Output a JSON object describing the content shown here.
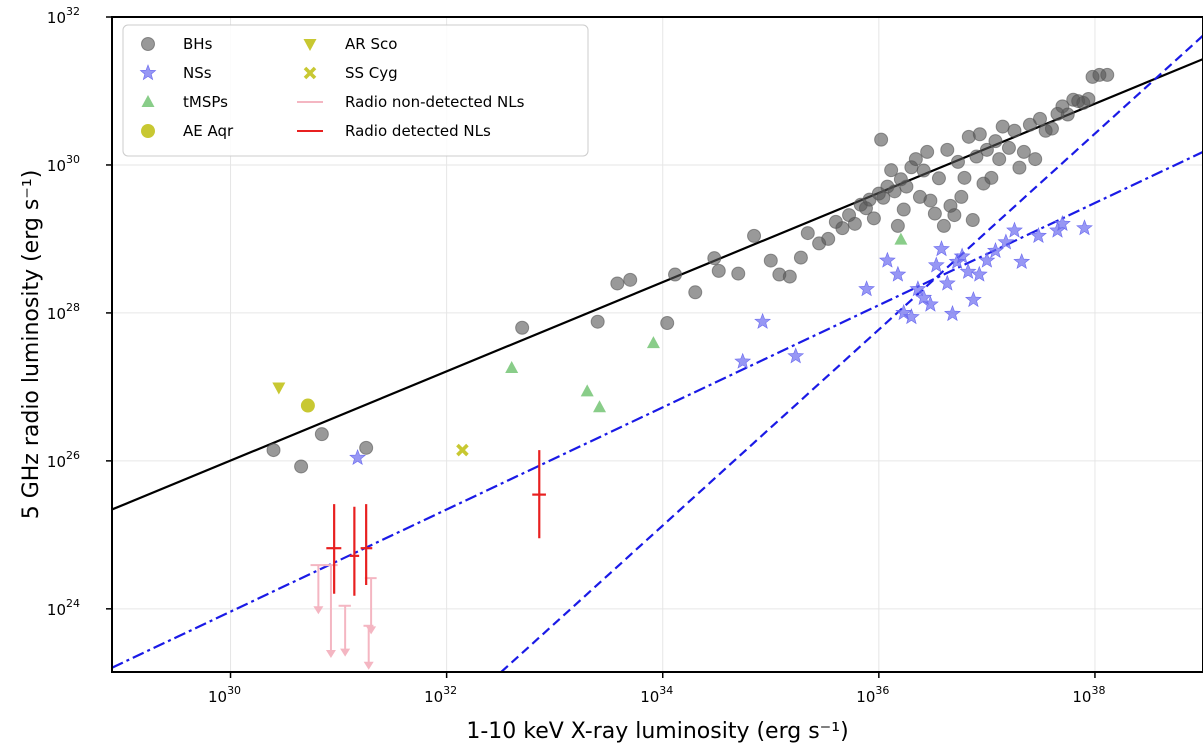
{
  "chart_data": {
    "type": "scatter",
    "xscale": "log",
    "yscale": "log",
    "xlim": [
      8e+28,
      1e+39
    ],
    "ylim": [
      1.4e+23,
      1e+32
    ],
    "grid": true,
    "legend_position": "top-left",
    "xlabel": "1-10 keV X-ray luminosity (erg s⁻¹)",
    "ylabel": "5 GHz radio luminosity (erg s⁻¹)",
    "x_ticks": [
      {
        "value": 1e+30,
        "base": "10",
        "exp": "30"
      },
      {
        "value": 1e+32,
        "base": "10",
        "exp": "32"
      },
      {
        "value": 1e+34,
        "base": "10",
        "exp": "34"
      },
      {
        "value": 1e+36,
        "base": "10",
        "exp": "36"
      },
      {
        "value": 1e+38,
        "base": "10",
        "exp": "38"
      }
    ],
    "y_ticks": [
      {
        "value": 1e+24,
        "base": "10",
        "exp": "24"
      },
      {
        "value": 1e+26,
        "base": "10",
        "exp": "26"
      },
      {
        "value": 1e+28,
        "base": "10",
        "exp": "28"
      },
      {
        "value": 1e+30,
        "base": "10",
        "exp": "30"
      },
      {
        "value": 1e+32,
        "base": "10",
        "exp": "32"
      }
    ],
    "legend": [
      {
        "label": "BHs",
        "marker": "circle",
        "color": "#555555"
      },
      {
        "label": "NSs",
        "marker": "star",
        "color": "#6b6bf0"
      },
      {
        "label": "tMSPs",
        "marker": "triangle-up",
        "color": "#6cc06c"
      },
      {
        "label": "AE Aqr",
        "marker": "circle",
        "color": "#c8c832"
      },
      {
        "label": "AR Sco",
        "marker": "triangle-down",
        "color": "#c8c832"
      },
      {
        "label": "SS Cyg",
        "marker": "x",
        "color": "#c8c832"
      },
      {
        "label": "Radio non-detected NLs",
        "marker": "line",
        "color": "#f4b6c2"
      },
      {
        "label": "Radio detected NLs",
        "marker": "line",
        "color": "#e82020"
      }
    ],
    "fit_lines": [
      {
        "style": "solid",
        "color": "#000000",
        "points": [
          [
            8e+28,
            2.2e+25
          ],
          [
            1e+39,
            2.7e+31
          ]
        ]
      },
      {
        "style": "dashdot",
        "color": "#1a1ae6",
        "points": [
          [
            8e+28,
            1.6e+23
          ],
          [
            1e+39,
            1.5e+30
          ]
        ]
      },
      {
        "style": "dashed",
        "color": "#1a1ae6",
        "points": [
          [
            3.2e+32,
            1.4e+23
          ],
          [
            1e+39,
            5.6e+31
          ]
        ]
      }
    ],
    "series": [
      {
        "name": "BHs",
        "marker": "circle",
        "color": "#555555",
        "points": [
          [
            2.5e+30,
            1.4e+26
          ],
          [
            4.5e+30,
            8.4e+25
          ],
          [
            7e+30,
            2.3e+26
          ],
          [
            1.8e+31,
            1.5e+26
          ],
          [
            5e+32,
            6.3e+27
          ],
          [
            2.5e+33,
            7.6e+27
          ],
          [
            3.8e+33,
            2.5e+28
          ],
          [
            5e+33,
            2.8e+28
          ],
          [
            1.1e+34,
            7.3e+27
          ],
          [
            1.3e+34,
            3.3e+28
          ],
          [
            2e+34,
            1.9e+28
          ],
          [
            3e+34,
            5.5e+28
          ],
          [
            3.3e+34,
            3.7e+28
          ],
          [
            5e+34,
            3.4e+28
          ],
          [
            7e+34,
            1.1e+29
          ],
          [
            1e+35,
            5.1e+28
          ],
          [
            1.2e+35,
            3.3e+28
          ],
          [
            1.5e+35,
            3.1e+28
          ],
          [
            1.9e+35,
            5.6e+28
          ],
          [
            2.2e+35,
            1.2e+29
          ],
          [
            2.8e+35,
            8.7e+28
          ],
          [
            3.4e+35,
            1e+29
          ],
          [
            4e+35,
            1.7e+29
          ],
          [
            4.6e+35,
            1.4e+29
          ],
          [
            5.3e+35,
            2.1e+29
          ],
          [
            6e+35,
            1.6e+29
          ],
          [
            6.8e+35,
            2.9e+29
          ],
          [
            7.6e+35,
            2.6e+29
          ],
          [
            8.2e+35,
            3.4e+29
          ],
          [
            9e+35,
            1.9e+29
          ],
          [
            1e+36,
            4.1e+29
          ],
          [
            1.05e+36,
            2.2e+30
          ],
          [
            1.1e+36,
            3.6e+29
          ],
          [
            1.2e+36,
            5.1e+29
          ],
          [
            1.3e+36,
            8.5e+29
          ],
          [
            1.4e+36,
            4.4e+29
          ],
          [
            1.5e+36,
            1.5e+29
          ],
          [
            1.6e+36,
            6.4e+29
          ],
          [
            1.7e+36,
            2.5e+29
          ],
          [
            1.8e+36,
            5.1e+29
          ],
          [
            2e+36,
            9.3e+29
          ],
          [
            2.2e+36,
            1.2e+30
          ],
          [
            2.4e+36,
            3.7e+29
          ],
          [
            2.6e+36,
            8.4e+29
          ],
          [
            2.8e+36,
            1.5e+30
          ],
          [
            3e+36,
            3.3e+29
          ],
          [
            3.3e+36,
            2.2e+29
          ],
          [
            3.6e+36,
            6.6e+29
          ],
          [
            4e+36,
            1.5e+29
          ],
          [
            4.3e+36,
            1.6e+30
          ],
          [
            4.6e+36,
            2.8e+29
          ],
          [
            5e+36,
            2.1e+29
          ],
          [
            5.4e+36,
            1.1e+30
          ],
          [
            5.8e+36,
            3.7e+29
          ],
          [
            6.2e+36,
            6.7e+29
          ],
          [
            6.8e+36,
            2.4e+30
          ],
          [
            7.4e+36,
            1.8e+29
          ],
          [
            8e+36,
            1.3e+30
          ],
          [
            8.6e+36,
            2.6e+30
          ],
          [
            9.3e+36,
            5.6e+29
          ],
          [
            1e+37,
            1.6e+30
          ],
          [
            1.1e+37,
            6.7e+29
          ],
          [
            1.2e+37,
            2.1e+30
          ],
          [
            1.3e+37,
            1.2e+30
          ],
          [
            1.4e+37,
            3.3e+30
          ],
          [
            1.6e+37,
            1.7e+30
          ],
          [
            1.8e+37,
            2.9e+30
          ],
          [
            2e+37,
            9.2e+29
          ],
          [
            2.2e+37,
            1.5e+30
          ],
          [
            2.5e+37,
            3.5e+30
          ],
          [
            2.8e+37,
            1.2e+30
          ],
          [
            3.1e+37,
            4.2e+30
          ],
          [
            3.5e+37,
            2.9e+30
          ],
          [
            4e+37,
            3.1e+30
          ],
          [
            4.5e+37,
            4.9e+30
          ],
          [
            5e+37,
            6.2e+30
          ],
          [
            5.6e+37,
            4.8e+30
          ],
          [
            6.3e+37,
            7.6e+30
          ],
          [
            7e+37,
            7.3e+30
          ],
          [
            7.8e+37,
            6.9e+30
          ],
          [
            8.7e+37,
            7.8e+30
          ],
          [
            9.5e+37,
            1.55e+31
          ],
          [
            1.1e+38,
            1.65e+31
          ],
          [
            1.3e+38,
            1.65e+31
          ]
        ]
      },
      {
        "name": "NSs",
        "marker": "star",
        "color": "#6b6bf0",
        "points": [
          [
            1.5e+31,
            1.1e+26
          ],
          [
            5.5e+34,
            2.2e+27
          ],
          [
            8.4e+34,
            7.6e+27
          ],
          [
            1.7e+35,
            2.6e+27
          ],
          [
            7.7e+35,
            2.1e+28
          ],
          [
            1.2e+36,
            5.1e+28
          ],
          [
            1.5e+36,
            3.3e+28
          ],
          [
            1.7e+36,
            1e+28
          ],
          [
            2e+36,
            8.8e+27
          ],
          [
            2.3e+36,
            2.1e+28
          ],
          [
            2.6e+36,
            1.6e+28
          ],
          [
            3e+36,
            1.3e+28
          ],
          [
            3.4e+36,
            4.4e+28
          ],
          [
            3.8e+36,
            7.3e+28
          ],
          [
            4.3e+36,
            2.5e+28
          ],
          [
            4.8e+36,
            9.7e+27
          ],
          [
            5.3e+36,
            4.9e+28
          ],
          [
            5.9e+36,
            5.8e+28
          ],
          [
            6.7e+36,
            3.6e+28
          ],
          [
            7.5e+36,
            1.5e+28
          ],
          [
            8.5e+36,
            3.3e+28
          ],
          [
            1e+37,
            5.1e+28
          ],
          [
            1.2e+37,
            6.9e+28
          ],
          [
            1.5e+37,
            9e+28
          ],
          [
            1.8e+37,
            1.3e+29
          ],
          [
            2.1e+37,
            4.9e+28
          ],
          [
            3e+37,
            1.1e+29
          ],
          [
            4.5e+37,
            1.3e+29
          ],
          [
            5e+37,
            1.6e+29
          ],
          [
            8e+37,
            1.4e+29
          ]
        ]
      },
      {
        "name": "tMSPs",
        "marker": "triangle-up",
        "color": "#6cc06c",
        "points": [
          [
            4e+32,
            1.8e+27
          ],
          [
            2e+33,
            8.7e+26
          ],
          [
            2.6e+33,
            5.3e+26
          ],
          [
            8.2e+33,
            3.9e+27
          ],
          [
            1.6e+36,
            9.8e+28
          ]
        ]
      },
      {
        "name": "AE Aqr",
        "marker": "circle",
        "color": "#c8c832",
        "points": [
          [
            5.2e+30,
            5.6e+26
          ]
        ]
      },
      {
        "name": "AR Sco",
        "marker": "triangle-down",
        "color": "#c8c832",
        "points": [
          [
            2.8e+30,
            9.8e+26
          ]
        ]
      },
      {
        "name": "SS Cyg",
        "marker": "x",
        "color": "#c8c832",
        "points": [
          [
            1.4e+32,
            1.4e+26
          ]
        ]
      },
      {
        "name": "Radio non-detected NLs",
        "marker": "upper-limit",
        "color": "#f4b6c2",
        "points": [
          {
            "x": 6.5e+30,
            "y": 3.9e+24,
            "xerr": [
              5.5e+30,
              7.6e+30
            ],
            "ylow": 9e+23
          },
          {
            "x": 8.5e+30,
            "y": 3.9e+24,
            "xerr": [
              7.3e+30,
              9.8e+30
            ],
            "ylow": 2.3e+23
          },
          {
            "x": 1.15e+31,
            "y": 1.1e+24,
            "xerr": [
              1e+31,
              1.3e+31
            ],
            "ylow": 2.4e+23
          },
          {
            "x": 1.9e+31,
            "y": 5.9e+23,
            "xerr": [
              1.7e+31,
              2.1e+31
            ],
            "ylow": 1.6e+23
          },
          {
            "x": 2e+31,
            "y": 2.6e+24,
            "xerr": [
              1.75e+31,
              2.25e+31
            ],
            "ylow": 4.8e+23
          }
        ]
      },
      {
        "name": "Radio detected NLs",
        "marker": "errorbar",
        "color": "#e82020",
        "points": [
          {
            "x": 9.1e+30,
            "y": 6.6e+24,
            "yerr": [
              1.6e+24,
              2.6e+25
            ],
            "xerr": [
              7.7e+30,
              1.06e+31
            ]
          },
          {
            "x": 1.4e+31,
            "y": 5.2e+24,
            "yerr": [
              1.5e+24,
              2.4e+25
            ],
            "xerr": [
              1.27e+31,
              1.55e+31
            ]
          },
          {
            "x": 1.8e+31,
            "y": 6.6e+24,
            "yerr": [
              2.1e+24,
              2.6e+25
            ],
            "xerr": [
              1.6e+31,
              2.05e+31
            ]
          },
          {
            "x": 7.2e+32,
            "y": 3.5e+25,
            "yerr": [
              9e+24,
              1.4e+26
            ],
            "xerr": [
              6.2e+32,
              8.3e+32
            ]
          }
        ]
      }
    ]
  }
}
